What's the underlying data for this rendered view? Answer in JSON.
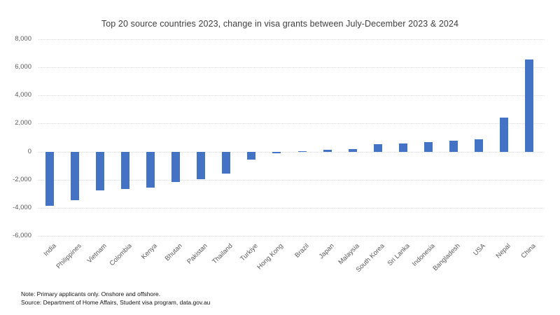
{
  "colors": {
    "bar": "#4472C4",
    "gridline": "#D9D9D9",
    "axis_text": "#595959",
    "title_text": "#404040"
  },
  "notes": {
    "note": "Note: Primary applicants only. Onshore and offshore.",
    "source": "Source: Department of Home Affairs, Student visa program, data.gov.au"
  },
  "chart_data": {
    "type": "bar",
    "title": "Top 20 source countries 2023, change in visa grants between July-December 2023 & 2024",
    "categories": [
      "India",
      "Philippines",
      "Vietnam",
      "Colombia",
      "Kenya",
      "Bhutan",
      "Pakistan",
      "Thailand",
      "Turkiye",
      "Hong Kong",
      "Brazil",
      "Japan",
      "Malaysia",
      "South Korea",
      "Sri Lanka",
      "Indonesia",
      "Bangladesh",
      "USA",
      "Nepal",
      "China"
    ],
    "values": [
      -3850,
      -3450,
      -2750,
      -2650,
      -2550,
      -2150,
      -1950,
      -1550,
      -550,
      -100,
      50,
      150,
      200,
      550,
      600,
      700,
      800,
      900,
      2400,
      6550
    ],
    "xlabel": "",
    "ylabel": "",
    "ylim": [
      -6000,
      8000
    ],
    "yticks": [
      8000,
      6000,
      4000,
      2000,
      0,
      -2000,
      -4000,
      -6000
    ],
    "ytick_labels": [
      "8,000",
      "6,000",
      "4,000",
      "2,000",
      "0",
      "-2,000",
      "-4,000",
      "-6,000"
    ],
    "grid": "horizontal-dotted",
    "legend": "none",
    "bar_color": "#4472C4"
  }
}
